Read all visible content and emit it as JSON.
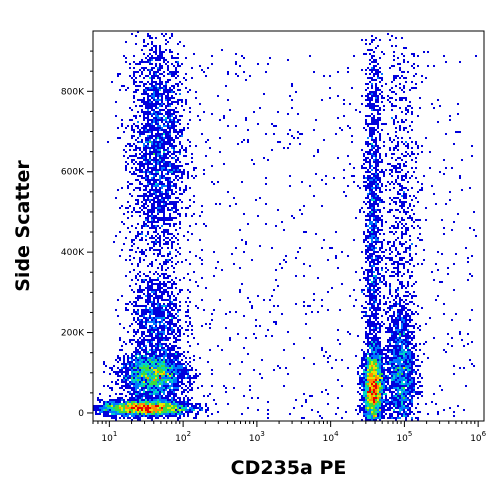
{
  "chart_data": {
    "type": "scatter",
    "subtype": "flow-cytometry density dot plot",
    "xlabel": "CD235a PE",
    "ylabel": "Side Scatter",
    "x_scale": "log",
    "xlim": [
      6,
      1200000
    ],
    "ylim": [
      -20000,
      950000
    ],
    "x_ticks": [
      {
        "value": 10,
        "base": "10",
        "exp": "1"
      },
      {
        "value": 100,
        "base": "10",
        "exp": "2"
      },
      {
        "value": 1000,
        "base": "10",
        "exp": "3"
      },
      {
        "value": 10000,
        "base": "10",
        "exp": "4"
      },
      {
        "value": 100000,
        "base": "10",
        "exp": "5"
      },
      {
        "value": 1000000,
        "base": "10",
        "exp": "6"
      }
    ],
    "y_ticks": [
      {
        "value": 0,
        "label": "0"
      },
      {
        "value": 200000,
        "label": "200K"
      },
      {
        "value": 400000,
        "label": "400K"
      },
      {
        "value": 600000,
        "label": "600K"
      },
      {
        "value": 800000,
        "label": "800K"
      }
    ],
    "populations": [
      {
        "x_center": 45,
        "y_center": 650000,
        "x_spread_decades": 0.18,
        "y_spread": 150000,
        "relative_density": 0.9
      },
      {
        "x_center": 45,
        "y_center": 230000,
        "x_spread_decades": 0.18,
        "y_spread": 55000,
        "relative_density": 0.35
      },
      {
        "x_center": 40,
        "y_center": 95000,
        "x_spread_decades": 0.22,
        "y_spread": 28000,
        "relative_density": 0.9
      },
      {
        "x_center": 30,
        "y_center": 12000,
        "x_spread_decades": 0.3,
        "y_spread": 10000,
        "relative_density": 1.0
      },
      {
        "x_center": 38000,
        "y_center": 60000,
        "x_spread_decades": 0.07,
        "y_spread": 45000,
        "relative_density": 1.0
      },
      {
        "x_center": 38000,
        "y_center": 450000,
        "x_spread_decades": 0.06,
        "y_spread": 300000,
        "relative_density": 0.6
      },
      {
        "x_center": 90000,
        "y_center": 100000,
        "x_spread_decades": 0.1,
        "y_spread": 80000,
        "relative_density": 0.55
      },
      {
        "x_center": 90000,
        "y_center": 450000,
        "x_spread_decades": 0.12,
        "y_spread": 280000,
        "relative_density": 0.3
      }
    ],
    "color_scale": [
      "#0000dd",
      "#0078ff",
      "#00d2c8",
      "#3cdc3c",
      "#e6e600",
      "#ff8c00",
      "#e60000"
    ],
    "grid": false,
    "legend": "none"
  }
}
